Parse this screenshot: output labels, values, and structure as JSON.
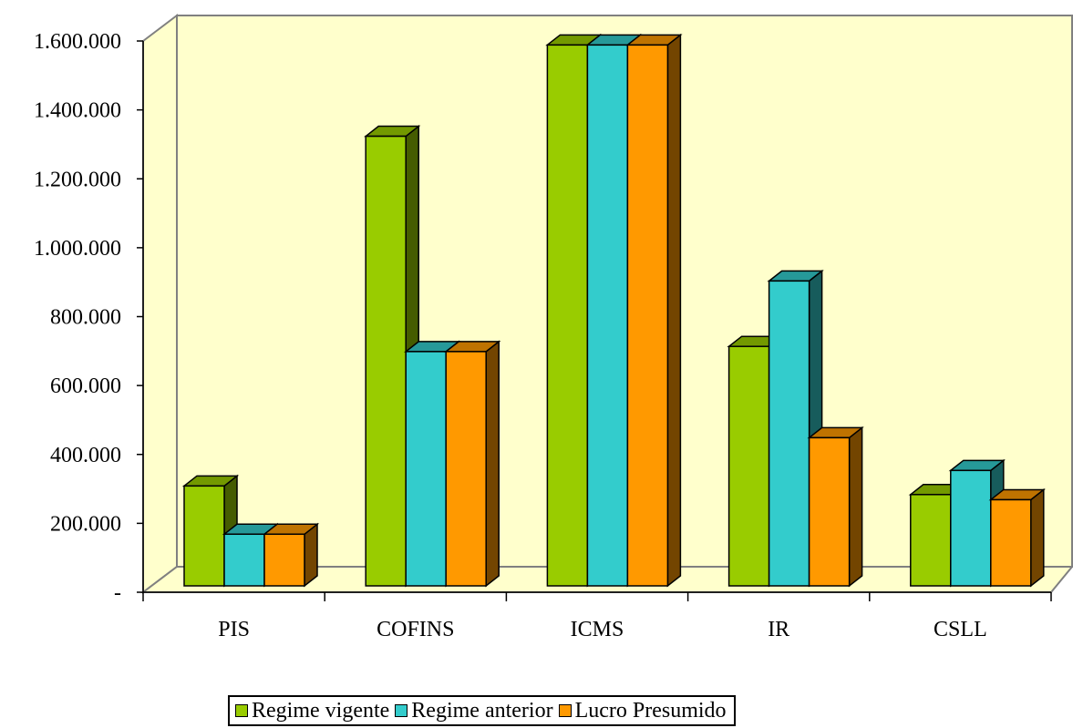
{
  "chart_data": {
    "type": "bar",
    "categories": [
      "PIS",
      "COFINS",
      "ICMS",
      "IR",
      "CSLL"
    ],
    "series": [
      {
        "name": "Regime vigente",
        "values": [
          290000,
          1305000,
          1570000,
          695000,
          265000
        ]
      },
      {
        "name": "Regime anterior",
        "values": [
          150000,
          680000,
          1570000,
          885000,
          335000
        ]
      },
      {
        "name": "Lucro Presumido",
        "values": [
          150000,
          680000,
          1570000,
          430000,
          250000
        ]
      }
    ],
    "y_ticks": [
      "-",
      "200.000",
      "400.000",
      "600.000",
      "800.000",
      "1.000.000",
      "1.200.000",
      "1.400.000",
      "1.600.000"
    ],
    "ylim": [
      0,
      1600000
    ],
    "legend_position": "bottom",
    "grid": false,
    "colors": {
      "Regime vigente": "#99CC00",
      "Regime anterior": "#33CCCC",
      "Lucro Presumido": "#FF9900",
      "plot_back_wall": "#FFFFCC",
      "plot_floor": "#FFFFCC"
    },
    "style": "3d-clustered-column"
  }
}
